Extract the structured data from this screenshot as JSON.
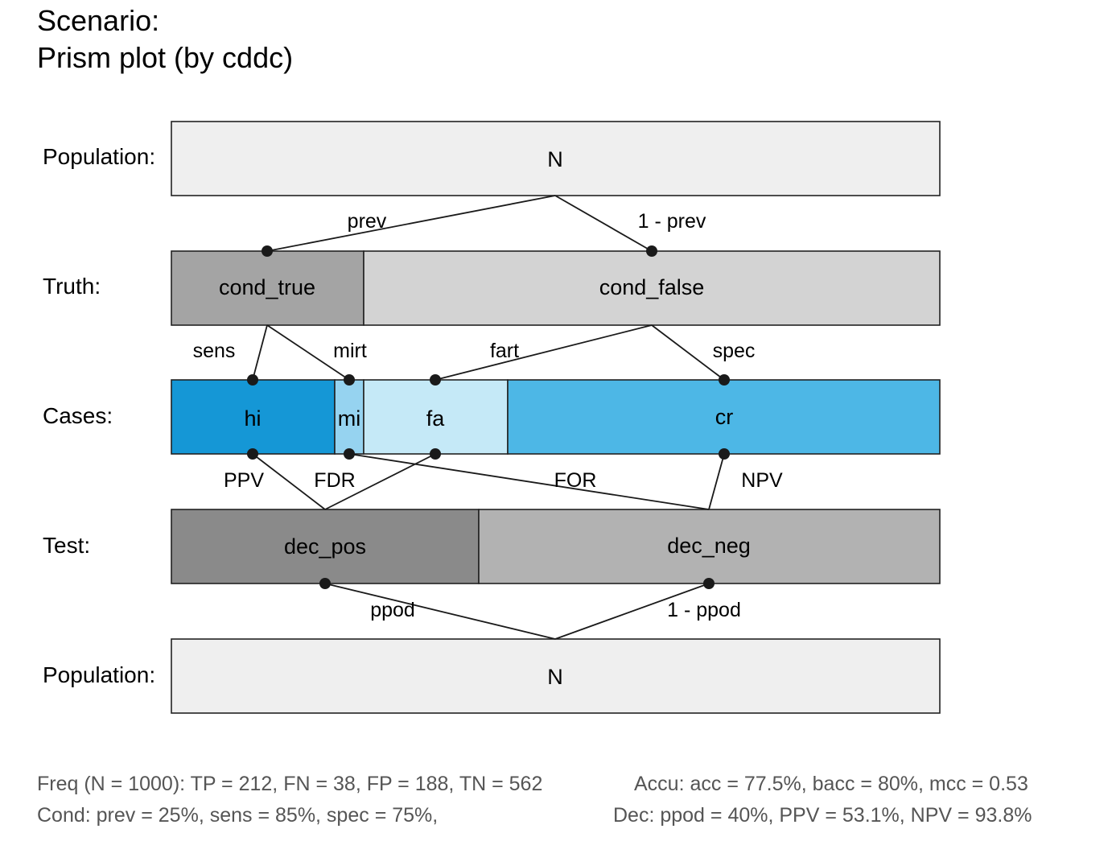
{
  "title": {
    "line1": "Scenario:",
    "line2": "Prism plot (by cddc)"
  },
  "row_labels": {
    "population_top": "Population:",
    "truth": "Truth:",
    "cases": "Cases:",
    "test": "Test:",
    "population_bottom": "Population:"
  },
  "boxes": {
    "n_top": "N",
    "cond_true": "cond_true",
    "cond_false": "cond_false",
    "hi": "hi",
    "mi": "mi",
    "fa": "fa",
    "cr": "cr",
    "dec_pos": "dec_pos",
    "dec_neg": "dec_neg",
    "n_bottom": "N"
  },
  "edges": {
    "prev": "prev",
    "one_minus_prev": "1 - prev",
    "sens": "sens",
    "mirt": "mirt",
    "fart": "fart",
    "spec": "spec",
    "ppv": "PPV",
    "fdr": "FDR",
    "for": "FOR",
    "npv": "NPV",
    "ppod": "ppod",
    "one_minus_ppod": "1 - ppod"
  },
  "colors": {
    "population": "#efefef",
    "cond_true": "#a4a4a4",
    "cond_false": "#d3d3d3",
    "hi": "#1597d6",
    "mi": "#96d3f0",
    "fa": "#c5e9f7",
    "cr": "#4db7e6",
    "dec_pos": "#8a8a8a",
    "dec_neg": "#b2b2b2"
  },
  "footer": {
    "freq": "Freq (N = 1000):  TP = 212, FN = 38, FP = 188, TN = 562",
    "accu": "Accu:  acc = 77.5%, bacc = 80%, mcc = 0.53",
    "cond": "Cond:  prev = 25%, sens = 85%, spec = 75%,",
    "dec": "Dec:  ppod = 40%, PPV = 53.1%, NPV = 93.8%"
  }
}
